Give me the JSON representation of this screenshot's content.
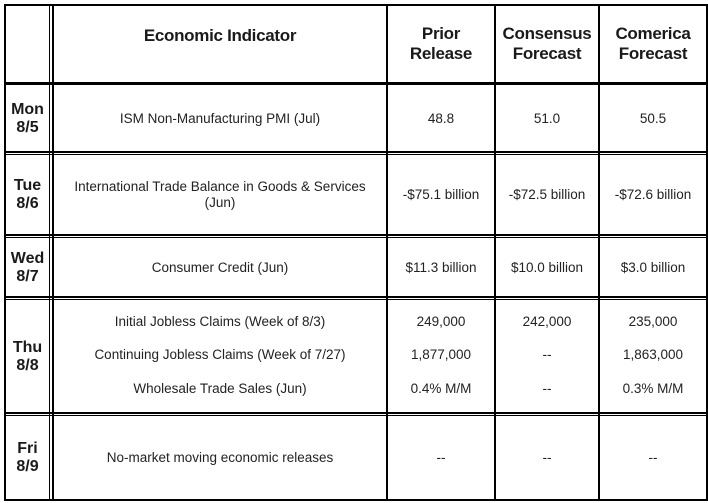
{
  "headers": {
    "indicator": "Economic Indicator",
    "prior": [
      "Prior",
      "Release"
    ],
    "consensus": [
      "Consensus",
      "Forecast"
    ],
    "comerica": [
      "Comerica",
      "Forecast"
    ]
  },
  "days": [
    {
      "dow": "Mon",
      "date": "8/5",
      "rows": [
        {
          "indicator": [
            "ISM Non-Manufacturing PMI (Jul)"
          ],
          "prior": "48.8",
          "consensus": "51.0",
          "comerica": "50.5"
        }
      ]
    },
    {
      "dow": "Tue",
      "date": "8/6",
      "rows": [
        {
          "indicator": [
            "International Trade Balance in Goods & Services",
            "(Jun)"
          ],
          "prior": "-$75.1 billion",
          "consensus": "-$72.5 billion",
          "comerica": "-$72.6 billion"
        }
      ]
    },
    {
      "dow": "Wed",
      "date": "8/7",
      "rows": [
        {
          "indicator": [
            "Consumer Credit (Jun)"
          ],
          "prior": "$11.3 billion",
          "consensus": "$10.0 billion",
          "comerica": "$3.0 billion"
        }
      ]
    },
    {
      "dow": "Thu",
      "date": "8/8",
      "rows": [
        {
          "indicator": [
            "Initial Jobless Claims (Week of 8/3)"
          ],
          "prior": "249,000",
          "consensus": "242,000",
          "comerica": "235,000"
        },
        {
          "indicator": [
            "Continuing Jobless Claims (Week of 7/27)"
          ],
          "prior": "1,877,000",
          "consensus": "--",
          "comerica": "1,863,000"
        },
        {
          "indicator": [
            "Wholesale Trade Sales (Jun)"
          ],
          "prior": "0.4% M/M",
          "consensus": "--",
          "comerica": "0.3% M/M"
        }
      ]
    },
    {
      "dow": "Fri",
      "date": "8/9",
      "rows": [
        {
          "indicator": [
            "No-market moving economic releases"
          ],
          "prior": "--",
          "consensus": "--",
          "comerica": "--"
        }
      ]
    }
  ]
}
